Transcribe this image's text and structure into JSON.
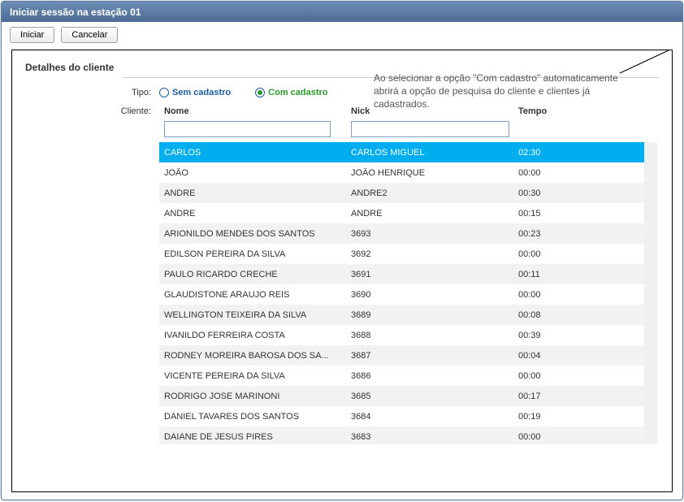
{
  "window": {
    "title": "Iniciar sessão na estação 01"
  },
  "toolbar": {
    "start_label": "Iniciar",
    "cancel_label": "Cancelar"
  },
  "section": {
    "title": "Detalhes do cliente",
    "tipo_label": "Tipo:",
    "cliente_label": "Cliente:",
    "radio_sem": "Sem cadastro",
    "radio_com": "Com cadastro"
  },
  "annotation": {
    "text": "Ao selecionar a opção \"Com cadastro\" automaticamente abrirá a opção de pesquisa do cliente e clientes já cadastrados."
  },
  "table": {
    "headers": {
      "nome": "Nome",
      "nick": "Nick",
      "tempo": "Tempo"
    },
    "filter_nome": "",
    "filter_nick": "",
    "selected_index": 0,
    "colors": {
      "selected_bg": "#00aeef",
      "alt_bg": "#f2f2f2",
      "text": "#333333"
    },
    "rows": [
      {
        "nome": "CARLOS",
        "nick": "CARLOS MIGUEL",
        "tempo": "02:30"
      },
      {
        "nome": "JOÃO",
        "nick": "JOÃO HENRIQUE",
        "tempo": "00:00"
      },
      {
        "nome": "ANDRE",
        "nick": "ANDRE2",
        "tempo": "00:30"
      },
      {
        "nome": "ANDRE",
        "nick": "ANDRE",
        "tempo": "00:15"
      },
      {
        "nome": "ARIONILDO MENDES DOS SANTOS",
        "nick": "3693",
        "tempo": "00:23"
      },
      {
        "nome": "EDILSON PEREIRA DA SILVA",
        "nick": "3692",
        "tempo": "00:00"
      },
      {
        "nome": "PAULO RICARDO CRECHE",
        "nick": "3691",
        "tempo": "00:11"
      },
      {
        "nome": "GLAUDISTONE ARAUJO REIS",
        "nick": "3690",
        "tempo": "00:00"
      },
      {
        "nome": "WELLINGTON TEIXEIRA DA SILVA",
        "nick": "3689",
        "tempo": "00:08"
      },
      {
        "nome": "IVANILDO FERREIRA COSTA",
        "nick": "3688",
        "tempo": "00:39"
      },
      {
        "nome": "RODNEY MOREIRA BAROSA DOS SA...",
        "nick": "3687",
        "tempo": "00:04"
      },
      {
        "nome": "VICENTE PEREIRA DA SILVA",
        "nick": "3686",
        "tempo": "00:00"
      },
      {
        "nome": "RODRIGO JOSE MARINONI",
        "nick": "3685",
        "tempo": "00:17"
      },
      {
        "nome": "DANIEL TAVARES DOS  SANTOS",
        "nick": "3684",
        "tempo": "00:19"
      },
      {
        "nome": "DAIANE DE JESUS PIRES",
        "nick": "3683",
        "tempo": "00:00"
      }
    ]
  }
}
